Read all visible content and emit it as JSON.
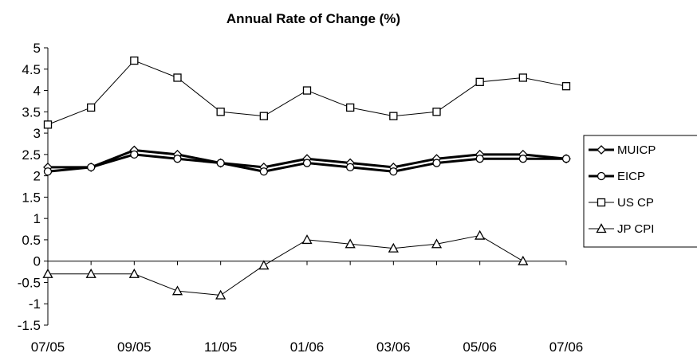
{
  "chart_data": {
    "type": "line",
    "title": "Annual Rate of Change (%)",
    "xlabel": "",
    "ylabel": "",
    "x_tick_labels": [
      "07/05",
      "09/05",
      "11/05",
      "01/06",
      "03/06",
      "05/06",
      "07/06"
    ],
    "categories": [
      "07/05",
      "08/05",
      "09/05",
      "10/05",
      "11/05",
      "12/05",
      "01/06",
      "02/06",
      "03/06",
      "04/06",
      "05/06",
      "06/06",
      "07/06"
    ],
    "y_tick_labels": [
      "5",
      "4.5",
      "4",
      "3.5",
      "3",
      "2.5",
      "2",
      "1.5",
      "1",
      "0.5",
      "0",
      "-0.5",
      "-1",
      "-1.5"
    ],
    "ylim": [
      -1.5,
      5
    ],
    "grid": false,
    "legend_position": "right",
    "series": [
      {
        "name": "MUICP",
        "marker": "diamond",
        "line_weight": "thick",
        "values": [
          2.2,
          2.2,
          2.6,
          2.5,
          2.3,
          2.2,
          2.4,
          2.3,
          2.2,
          2.4,
          2.5,
          2.5,
          2.4
        ]
      },
      {
        "name": "EICP",
        "marker": "circle",
        "line_weight": "thick",
        "values": [
          2.1,
          2.2,
          2.5,
          2.4,
          2.3,
          2.1,
          2.3,
          2.2,
          2.1,
          2.3,
          2.4,
          2.4,
          2.4
        ]
      },
      {
        "name": "US CP",
        "marker": "square",
        "line_weight": "thin",
        "values": [
          3.2,
          3.6,
          4.7,
          4.3,
          3.5,
          3.4,
          4.0,
          3.6,
          3.4,
          3.5,
          4.2,
          4.3,
          4.1
        ]
      },
      {
        "name": "JP CPI",
        "marker": "triangle",
        "line_weight": "thin",
        "values": [
          -0.3,
          -0.3,
          -0.3,
          -0.7,
          -0.8,
          -0.1,
          0.5,
          0.4,
          0.3,
          0.4,
          0.6,
          0.0,
          null
        ]
      }
    ]
  }
}
